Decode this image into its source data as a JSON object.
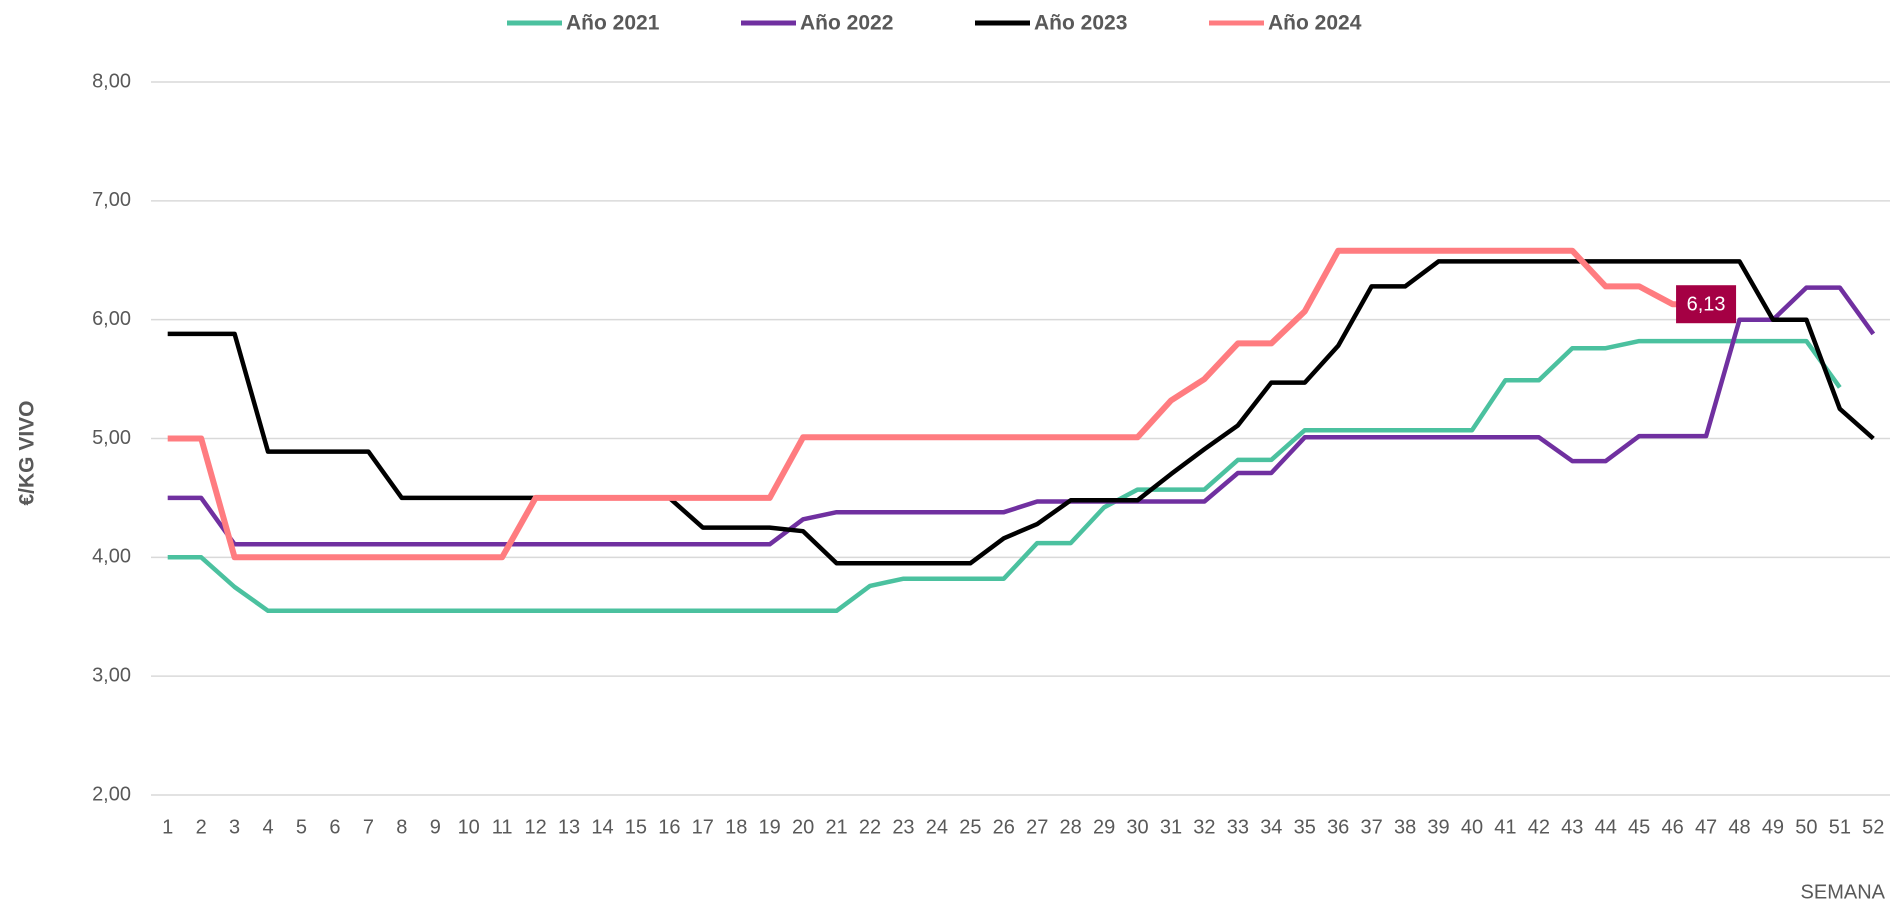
{
  "chart_data": {
    "type": "line",
    "categories": [
      "1",
      "2",
      "3",
      "4",
      "5",
      "6",
      "7",
      "8",
      "9",
      "10",
      "11",
      "12",
      "13",
      "14",
      "15",
      "16",
      "17",
      "18",
      "19",
      "20",
      "21",
      "22",
      "23",
      "24",
      "25",
      "26",
      "27",
      "28",
      "29",
      "30",
      "31",
      "32",
      "33",
      "34",
      "35",
      "36",
      "37",
      "38",
      "39",
      "40",
      "41",
      "42",
      "43",
      "44",
      "45",
      "46",
      "47",
      "48",
      "49",
      "50",
      "51",
      "52"
    ],
    "y_label": "€/KG VIVO",
    "x_label": "SEMANA",
    "ylim": [
      2,
      8
    ],
    "yticks": [
      {
        "value": 2,
        "label": "2,00"
      },
      {
        "value": 3,
        "label": "3,00"
      },
      {
        "value": 4,
        "label": "4,00"
      },
      {
        "value": 5,
        "label": "5,00"
      },
      {
        "value": 6,
        "label": "6,00"
      },
      {
        "value": 7,
        "label": "7,00"
      },
      {
        "value": 8,
        "label": "8,00"
      }
    ],
    "grid": true,
    "legend": "top",
    "series": [
      {
        "name": "Año 2021",
        "color": "#4bc19f",
        "values": [
          4.0,
          4.0,
          3.75,
          3.55,
          3.55,
          3.55,
          3.55,
          3.55,
          3.55,
          3.55,
          3.55,
          3.55,
          3.55,
          3.55,
          3.55,
          3.55,
          3.55,
          3.55,
          3.55,
          3.55,
          3.55,
          3.76,
          3.82,
          3.82,
          3.82,
          3.82,
          4.12,
          4.12,
          4.42,
          4.57,
          4.57,
          4.57,
          4.82,
          4.82,
          5.07,
          5.07,
          5.07,
          5.07,
          5.07,
          5.07,
          5.49,
          5.49,
          5.76,
          5.76,
          5.82,
          5.82,
          5.82,
          5.82,
          5.82,
          5.82,
          5.43,
          null
        ]
      },
      {
        "name": "Año 2022",
        "color": "#7030a0",
        "values": [
          4.5,
          4.5,
          4.11,
          4.11,
          4.11,
          4.11,
          4.11,
          4.11,
          4.11,
          4.11,
          4.11,
          4.11,
          4.11,
          4.11,
          4.11,
          4.11,
          4.11,
          4.11,
          4.11,
          4.32,
          4.38,
          4.38,
          4.38,
          4.38,
          4.38,
          4.38,
          4.47,
          4.47,
          4.47,
          4.47,
          4.47,
          4.47,
          4.71,
          4.71,
          5.01,
          5.01,
          5.01,
          5.01,
          5.01,
          5.01,
          5.01,
          5.01,
          4.81,
          4.81,
          5.02,
          5.02,
          5.02,
          6.0,
          6.0,
          6.27,
          6.27,
          5.88
        ]
      },
      {
        "name": "Año 2023",
        "color": "#000000",
        "values": [
          5.88,
          5.88,
          5.88,
          4.89,
          4.89,
          4.89,
          4.89,
          4.5,
          4.5,
          4.5,
          4.5,
          4.5,
          4.5,
          4.5,
          4.5,
          4.5,
          4.25,
          4.25,
          4.25,
          4.22,
          3.95,
          3.95,
          3.95,
          3.95,
          3.95,
          4.16,
          4.28,
          4.48,
          4.48,
          4.48,
          4.7,
          4.91,
          5.11,
          5.47,
          5.47,
          5.78,
          6.28,
          6.28,
          6.49,
          6.49,
          6.49,
          6.49,
          6.49,
          6.49,
          6.49,
          6.49,
          6.49,
          6.49,
          6.0,
          6.0,
          5.25,
          5.0
        ]
      },
      {
        "name": "Año 2024",
        "color": "#ff7c80",
        "values": [
          5.0,
          5.0,
          4.0,
          4.0,
          4.0,
          4.0,
          4.0,
          4.0,
          4.0,
          4.0,
          4.0,
          4.5,
          4.5,
          4.5,
          4.5,
          4.5,
          4.5,
          4.5,
          4.5,
          5.01,
          5.01,
          5.01,
          5.01,
          5.01,
          5.01,
          5.01,
          5.01,
          5.01,
          5.01,
          5.01,
          5.32,
          5.5,
          5.8,
          5.8,
          6.07,
          6.58,
          6.58,
          6.58,
          6.58,
          6.58,
          6.58,
          6.58,
          6.58,
          6.28,
          6.28,
          6.13,
          6.13,
          null,
          null,
          null,
          null,
          null
        ],
        "value_labels": [
          null,
          null,
          null,
          null,
          null,
          null,
          null,
          null,
          null,
          null,
          null,
          null,
          null,
          null,
          null,
          null,
          null,
          null,
          null,
          null,
          null,
          null,
          null,
          null,
          null,
          null,
          null,
          null,
          null,
          null,
          null,
          null,
          null,
          null,
          null,
          null,
          null,
          null,
          null,
          null,
          null,
          null,
          null,
          null,
          null,
          null,
          "6,13",
          null,
          null,
          null,
          null,
          null
        ],
        "label_color": "#a50044"
      }
    ]
  }
}
